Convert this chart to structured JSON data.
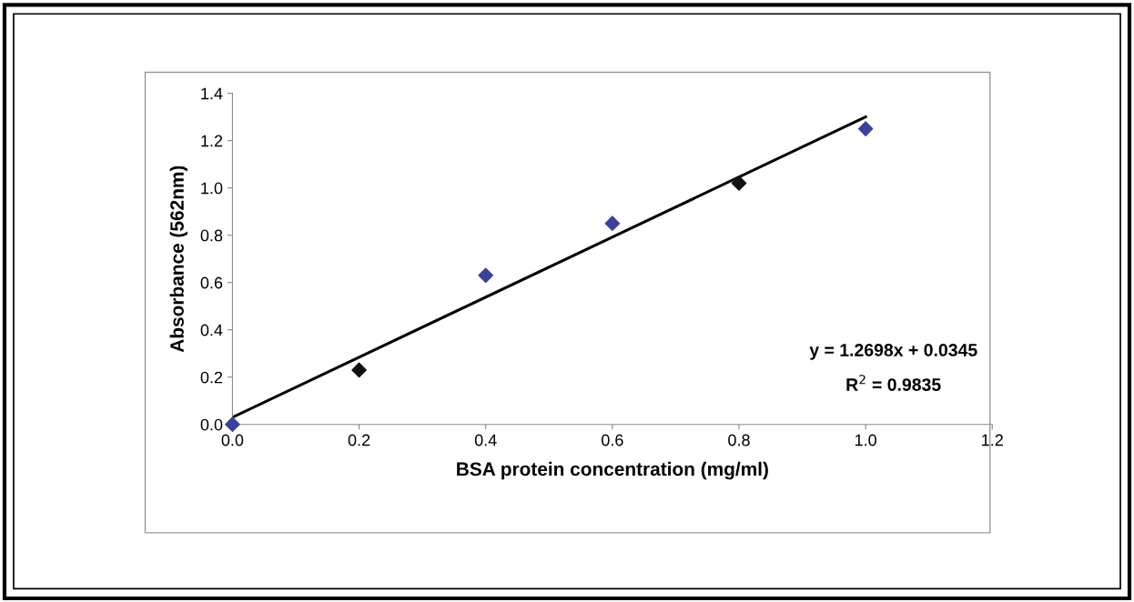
{
  "chart_data": {
    "type": "scatter",
    "xlabel": "BSA protein concentration (mg/ml)",
    "ylabel": "Absorbance (562nm)",
    "x": [
      0.0,
      0.2,
      0.4,
      0.6,
      0.8,
      1.0
    ],
    "series": [
      {
        "values": [
          0.0,
          0.23,
          0.63,
          0.85,
          1.02,
          1.25
        ],
        "colors": [
          "#3b4199",
          "#111111",
          "#3b4199",
          "#3b4199",
          "#111111",
          "#3b4199"
        ],
        "marker": "diamond"
      },
      {
        "type": "line",
        "x": [
          0.0,
          1.0
        ],
        "values": [
          0.03,
          1.3
        ],
        "color": "#000000",
        "line_style": "solid"
      }
    ],
    "annotations": [
      "y = 1.2698x + 0.0345",
      "R$^{2}$ = 0.9835"
    ],
    "xlim": [
      0,
      1.2
    ],
    "xticks": [
      {
        "value": 0,
        "label": "0.0"
      },
      {
        "value": 0.2,
        "label": "0.2"
      },
      {
        "value": 0.4,
        "label": "0.4"
      },
      {
        "value": 0.6,
        "label": "0.6"
      },
      {
        "value": 0.8,
        "label": "0.8"
      },
      {
        "value": 1.0,
        "label": "1.0"
      },
      {
        "value": 1.2,
        "label": "1.2"
      }
    ],
    "ylim": [
      0,
      1.4
    ],
    "yticks": [
      {
        "value": 0,
        "label": "0.0"
      },
      {
        "value": 0.2,
        "label": "0.2"
      },
      {
        "value": 0.4,
        "label": "0.4"
      },
      {
        "value": 0.6,
        "label": "0.6"
      },
      {
        "value": 0.8,
        "label": "0.8"
      },
      {
        "value": 1.0,
        "label": "1.0"
      },
      {
        "value": 1.2,
        "label": "1.2"
      },
      {
        "value": 1.4,
        "label": "1.4"
      }
    ],
    "grid": false,
    "legend": false
  }
}
